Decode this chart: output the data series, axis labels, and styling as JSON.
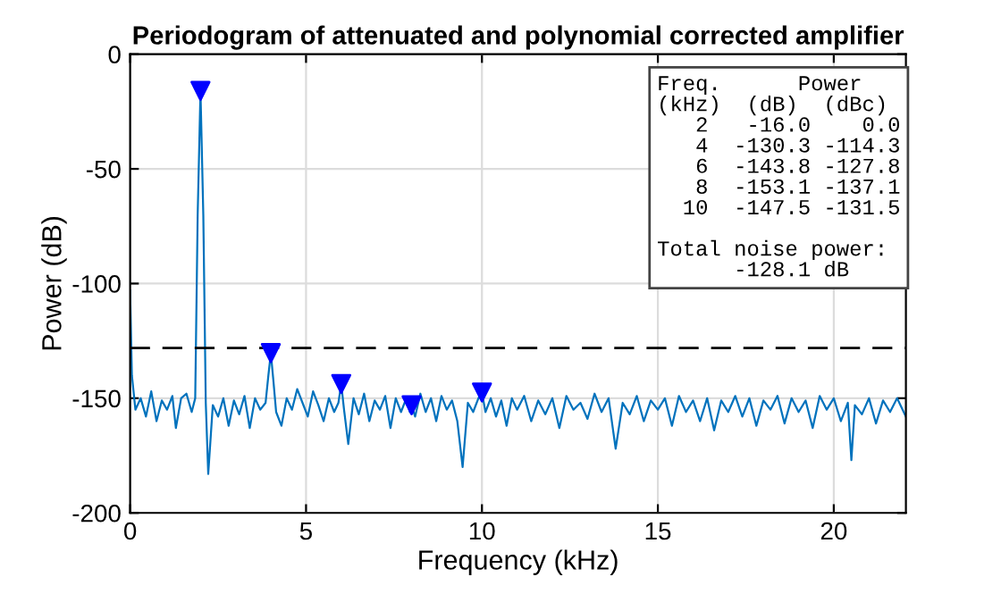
{
  "chart_data": {
    "type": "line",
    "title": "Periodogram of attenuated and polynomial corrected amplifier",
    "xlabel": "Frequency (kHz)",
    "ylabel": "Power (dB)",
    "xlim": [
      0,
      22.05
    ],
    "ylim": [
      -200,
      0
    ],
    "xticks": [
      0,
      5,
      10,
      15,
      20
    ],
    "yticks": [
      -200,
      -150,
      -100,
      -50,
      0
    ],
    "grid": true,
    "legend": false,
    "series": [
      {
        "color": "#0072bd",
        "marker": "none",
        "x": [
          0,
          0.05,
          0.15,
          0.3,
          0.45,
          0.6,
          0.75,
          0.9,
          1.05,
          1.2,
          1.3,
          1.45,
          1.6,
          1.75,
          1.85,
          1.92,
          2.0,
          2.08,
          2.15,
          2.22,
          2.35,
          2.5,
          2.65,
          2.8,
          2.95,
          3.1,
          3.25,
          3.4,
          3.55,
          3.7,
          3.85,
          3.93,
          4.0,
          4.07,
          4.15,
          4.3,
          4.45,
          4.6,
          4.75,
          4.9,
          5.05,
          5.2,
          5.35,
          5.5,
          5.65,
          5.8,
          5.92,
          6.0,
          6.08,
          6.2,
          6.35,
          6.5,
          6.65,
          6.8,
          6.95,
          7.1,
          7.25,
          7.4,
          7.55,
          7.7,
          7.85,
          7.95,
          8.0,
          8.1,
          8.25,
          8.4,
          8.55,
          8.7,
          8.85,
          9.0,
          9.15,
          9.3,
          9.45,
          9.6,
          9.75,
          9.9,
          10.0,
          10.1,
          10.25,
          10.4,
          10.55,
          10.7,
          10.85,
          11.0,
          11.2,
          11.4,
          11.6,
          11.8,
          12.0,
          12.2,
          12.4,
          12.6,
          12.8,
          13.0,
          13.2,
          13.4,
          13.6,
          13.8,
          14.0,
          14.2,
          14.4,
          14.6,
          14.8,
          15.0,
          15.2,
          15.4,
          15.6,
          15.8,
          16.0,
          16.2,
          16.4,
          16.6,
          16.8,
          17.0,
          17.2,
          17.4,
          17.6,
          17.8,
          18.0,
          18.2,
          18.4,
          18.6,
          18.8,
          19.0,
          19.2,
          19.4,
          19.6,
          19.8,
          20.0,
          20.2,
          20.4,
          20.5,
          20.6,
          20.8,
          21.0,
          21.2,
          21.4,
          21.6,
          21.8,
          22.05
        ],
        "values": [
          -103,
          -140,
          -155,
          -150,
          -158,
          -147,
          -160,
          -151,
          -155,
          -149,
          -163,
          -150,
          -148,
          -156,
          -150,
          -70,
          -16,
          -70,
          -152,
          -183,
          -153,
          -158,
          -150,
          -162,
          -151,
          -157,
          -149,
          -163,
          -150,
          -155,
          -152,
          -140,
          -130.3,
          -142,
          -156,
          -162,
          -150,
          -155,
          -146,
          -152,
          -158,
          -147,
          -153,
          -160,
          -150,
          -156,
          -152,
          -143.8,
          -155,
          -170,
          -150,
          -157,
          -148,
          -160,
          -151,
          -155,
          -149,
          -163,
          -150,
          -156,
          -150,
          -156,
          -153.1,
          -158,
          -148,
          -156,
          -150,
          -160,
          -149,
          -155,
          -151,
          -160,
          -180,
          -152,
          -156,
          -150,
          -147.5,
          -156,
          -150,
          -158,
          -151,
          -162,
          -150,
          -155,
          -149,
          -160,
          -151,
          -157,
          -150,
          -163,
          -149,
          -155,
          -152,
          -159,
          -148,
          -156,
          -150,
          -172,
          -152,
          -157,
          -149,
          -160,
          -151,
          -155,
          -150,
          -162,
          -149,
          -156,
          -151,
          -160,
          -150,
          -164,
          -151,
          -156,
          -149,
          -158,
          -150,
          -162,
          -151,
          -155,
          -149,
          -161,
          -150,
          -156,
          -151,
          -163,
          -149,
          -155,
          -150,
          -160,
          -152,
          -177,
          -153,
          -157,
          -150,
          -161,
          -151,
          -156,
          -150,
          -158
        ]
      },
      {
        "type": "scatter",
        "color": "#0000ff",
        "marker": "triangle",
        "x": [
          2,
          4,
          6,
          8,
          10
        ],
        "values": [
          -16.0,
          -130.3,
          -143.8,
          -153.1,
          -147.5
        ]
      }
    ],
    "ref_lines": [
      {
        "axis": "y",
        "value": -128.1,
        "line_style": "dashed",
        "color": "#000000"
      }
    ],
    "annotations": [
      "Freq.      Power\n(kHz)  (dB)  (dBc)\n   2   -16.0    0.0\n   4  -130.3 -114.3\n   6  -143.8 -127.8\n   8  -153.1 -137.1\n  10  -147.5 -131.5\n\nTotal noise power:\n      -128.1 dB"
    ]
  }
}
